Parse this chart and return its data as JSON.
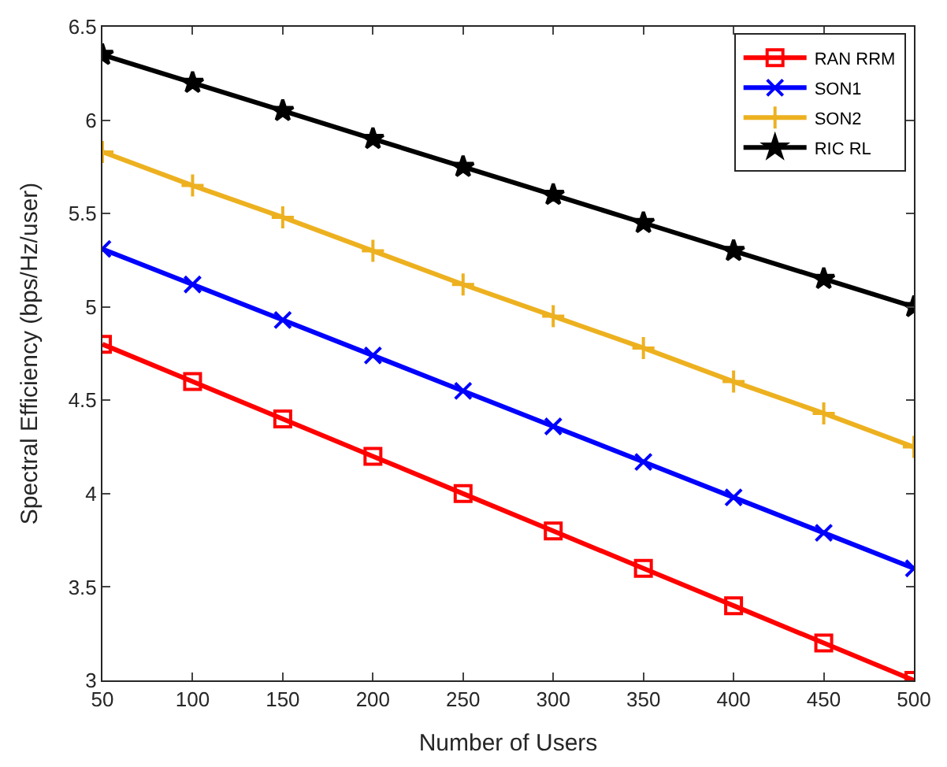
{
  "chart_data": {
    "type": "line",
    "xlabel": "Number of Users",
    "ylabel": "Spectral Efficiency (bps/Hz/user)",
    "x": [
      50,
      100,
      150,
      200,
      250,
      300,
      350,
      400,
      450,
      500
    ],
    "series": [
      {
        "name": "RAN RRM",
        "color": "#ff0000",
        "marker": "square",
        "values": [
          4.8,
          4.6,
          4.4,
          4.2,
          4.0,
          3.8,
          3.6,
          3.4,
          3.2,
          3.0
        ]
      },
      {
        "name": "SON1",
        "color": "#0000ff",
        "marker": "cross",
        "values": [
          5.31,
          5.12,
          4.93,
          4.74,
          4.55,
          4.36,
          4.17,
          3.98,
          3.79,
          3.6
        ]
      },
      {
        "name": "SON2",
        "color": "#edb120",
        "marker": "plus",
        "values": [
          5.83,
          5.65,
          5.48,
          5.3,
          5.12,
          4.95,
          4.78,
          4.6,
          4.43,
          4.25
        ]
      },
      {
        "name": "RIC RL",
        "color": "#000000",
        "marker": "star",
        "values": [
          6.35,
          6.2,
          6.05,
          5.9,
          5.75,
          5.6,
          5.45,
          5.3,
          5.15,
          5.0
        ]
      }
    ],
    "xlim": [
      50,
      500
    ],
    "xticks": [
      50,
      100,
      150,
      200,
      250,
      300,
      350,
      400,
      450,
      500
    ],
    "ylim": [
      3,
      6.5
    ],
    "yticks": [
      3,
      3.5,
      4,
      4.5,
      5,
      5.5,
      6,
      6.5
    ],
    "legend": "top right",
    "line_style": "solid"
  }
}
